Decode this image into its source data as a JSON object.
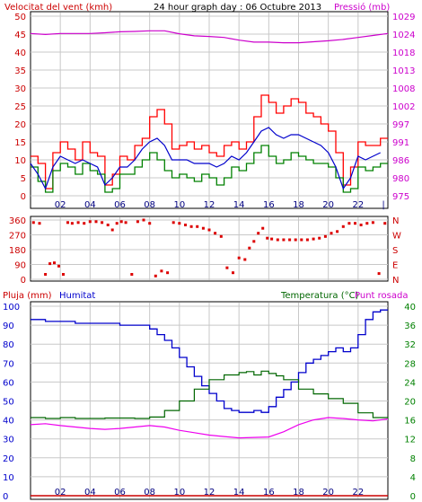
{
  "header": {
    "wind_label": "Velocitat del vent (kmh)",
    "date_label": "24 hour graph day : 06 Octubre 2013",
    "pressure_label": "Pressió (mb)"
  },
  "bottom_header": {
    "rain_label": "Pluja (mm)",
    "humidity_label": "Humitat",
    "temperature_label": "Temperatura (°C)",
    "dewpoint_label": "Punt rosada"
  },
  "colors": {
    "wind_avg": "#008000",
    "wind_gust": "#ff0000",
    "wind_dir_avg": "#0000cc",
    "pressure": "#cc00cc",
    "direction": "#dd0000",
    "humidity": "#0000cc",
    "temperature": "#006600",
    "dewpoint": "#ee00ee",
    "rain": "#cc0000",
    "grid": "#c8c8c8",
    "left_axis": "#cc0000",
    "humidity_axis": "#0000cc",
    "right_axis_top": "#cc00cc",
    "right_axis_bottom": "#008000"
  },
  "chart_data": [
    {
      "type": "line",
      "name": "wind_pressure",
      "x_ticks": [
        "02",
        "04",
        "06",
        "08",
        "10",
        "12",
        "14",
        "16",
        "18",
        "20",
        "22"
      ],
      "x_range_hours": [
        0,
        24
      ],
      "y_left_ticks": [
        0,
        5,
        10,
        15,
        20,
        25,
        30,
        35,
        40,
        45,
        50
      ],
      "y_left_range": [
        0,
        50
      ],
      "y_right_ticks": [
        975,
        980,
        986,
        991,
        997,
        1002,
        1008,
        1013,
        1018,
        1024,
        1029
      ],
      "y_right_range": [
        975,
        1029
      ],
      "grid": true,
      "series": [
        {
          "name": "Velocitat del vent (kmh)",
          "role": "gust",
          "x": [
            0,
            0.5,
            1,
            1.5,
            2,
            2.5,
            3,
            3.5,
            4,
            4.5,
            5,
            5.5,
            6,
            6.5,
            7,
            7.5,
            8,
            8.5,
            9,
            9.5,
            10,
            10.5,
            11,
            11.5,
            12,
            12.5,
            13,
            13.5,
            14,
            14.5,
            15,
            15.5,
            16,
            16.5,
            17,
            17.5,
            18,
            18.5,
            19,
            19.5,
            20,
            20.5,
            21,
            21.5,
            22,
            22.5,
            23,
            23.5
          ],
          "y": [
            11,
            9,
            2,
            12,
            15,
            13,
            10,
            15,
            12,
            11,
            3,
            6,
            11,
            10,
            14,
            16,
            22,
            24,
            20,
            13,
            14,
            15,
            13,
            14,
            12,
            11,
            14,
            15,
            13,
            15,
            22,
            28,
            26,
            23,
            25,
            27,
            26,
            23,
            22,
            20,
            18,
            12,
            3,
            8,
            15,
            14,
            14,
            16
          ]
        },
        {
          "name": "Velocitat del vent (kmh)",
          "role": "average",
          "x": [
            0,
            0.5,
            1,
            1.5,
            2,
            2.5,
            3,
            3.5,
            4,
            4.5,
            5,
            5.5,
            6,
            6.5,
            7,
            7.5,
            8,
            8.5,
            9,
            9.5,
            10,
            10.5,
            11,
            11.5,
            12,
            12.5,
            13,
            13.5,
            14,
            14.5,
            15,
            15.5,
            16,
            16.5,
            17,
            17.5,
            18,
            18.5,
            19,
            19.5,
            20,
            20.5,
            21,
            21.5,
            22,
            22.5,
            23,
            23.5
          ],
          "y": [
            8,
            4,
            1,
            7,
            9,
            8,
            6,
            9,
            7,
            6,
            1,
            2,
            6,
            6,
            8,
            10,
            12,
            10,
            7,
            5,
            6,
            5,
            4,
            6,
            5,
            3,
            5,
            8,
            7,
            9,
            12,
            14,
            11,
            9,
            10,
            12,
            11,
            10,
            9,
            9,
            8,
            5,
            1,
            2,
            8,
            7,
            8,
            9
          ]
        },
        {
          "name": "Velocitat del vent (kmh)",
          "role": "smoothed",
          "x": [
            0,
            0.5,
            1,
            1.5,
            2,
            2.5,
            3,
            3.5,
            4,
            4.5,
            5,
            5.5,
            6,
            6.5,
            7,
            7.5,
            8,
            8.5,
            9,
            9.5,
            10,
            10.5,
            11,
            11.5,
            12,
            12.5,
            13,
            13.5,
            14,
            14.5,
            15,
            15.5,
            16,
            16.5,
            17,
            17.5,
            18,
            18.5,
            19,
            19.5,
            20,
            20.5,
            21,
            21.5,
            22,
            22.5,
            23,
            23.5
          ],
          "y": [
            9,
            6,
            2,
            8,
            11,
            10,
            9,
            10,
            9,
            8,
            3,
            5,
            8,
            8,
            10,
            13,
            15,
            16,
            14,
            10,
            10,
            10,
            9,
            9,
            9,
            8,
            9,
            11,
            10,
            12,
            15,
            18,
            19,
            17,
            16,
            17,
            17,
            16,
            15,
            14,
            12,
            8,
            2,
            5,
            11,
            10,
            11,
            12
          ]
        },
        {
          "name": "Pressió (mb)",
          "x": [
            0,
            1,
            2,
            3,
            4,
            5,
            6,
            7,
            8,
            9,
            10,
            11,
            12,
            13,
            14,
            15,
            16,
            17,
            18,
            19,
            20,
            21,
            22,
            23,
            24
          ],
          "y": [
            1023.8,
            1023.5,
            1023.8,
            1023.8,
            1023.8,
            1024.0,
            1024.3,
            1024.4,
            1024.6,
            1024.6,
            1023.7,
            1023.1,
            1022.9,
            1022.6,
            1021.8,
            1021.2,
            1021.2,
            1021.0,
            1021.0,
            1021.3,
            1021.6,
            1022.0,
            1022.6,
            1023.2,
            1023.8
          ]
        }
      ]
    },
    {
      "type": "scatter",
      "name": "wind_direction",
      "y_ticks": [
        0,
        90,
        180,
        270,
        360
      ],
      "y_range": [
        0,
        360
      ],
      "y_right_ticks": [
        "N",
        "W",
        "S",
        "E",
        "N"
      ],
      "grid": true,
      "series": [
        {
          "name": "direction",
          "x": [
            0.2,
            0.6,
            1.0,
            1.3,
            1.6,
            1.9,
            2.2,
            2.5,
            2.8,
            3.2,
            3.6,
            4.0,
            4.4,
            4.8,
            5.2,
            5.5,
            5.8,
            6.1,
            6.4,
            6.8,
            7.2,
            7.6,
            8.0,
            8.4,
            8.8,
            9.2,
            9.6,
            10.0,
            10.4,
            10.8,
            11.2,
            11.6,
            12.0,
            12.4,
            12.8,
            13.2,
            13.6,
            14.0,
            14.4,
            14.7,
            15.0,
            15.3,
            15.6,
            15.9,
            16.2,
            16.6,
            17.0,
            17.4,
            17.8,
            18.2,
            18.6,
            19.0,
            19.4,
            19.8,
            20.2,
            20.6,
            21.0,
            21.4,
            21.8,
            22.2,
            22.6,
            23.0,
            23.4,
            23.8
          ],
          "y": [
            345,
            340,
            30,
            95,
            100,
            80,
            30,
            345,
            340,
            345,
            340,
            350,
            350,
            345,
            330,
            300,
            340,
            350,
            345,
            30,
            350,
            360,
            340,
            20,
            50,
            40,
            345,
            340,
            330,
            320,
            320,
            310,
            300,
            280,
            260,
            70,
            40,
            130,
            120,
            190,
            230,
            280,
            310,
            250,
            245,
            240,
            240,
            240,
            240,
            240,
            240,
            245,
            250,
            260,
            280,
            290,
            320,
            340,
            340,
            330,
            340,
            345,
            35,
            340
          ]
        }
      ]
    },
    {
      "type": "line",
      "name": "humidity_temperature",
      "x_ticks": [
        "02",
        "04",
        "06",
        "08",
        "10",
        "12",
        "14",
        "16",
        "18",
        "20",
        "22"
      ],
      "x_range_hours": [
        0,
        24
      ],
      "y_left_ticks": [
        0,
        10,
        20,
        30,
        40,
        50,
        60,
        70,
        80,
        90,
        100
      ],
      "y_left_range": [
        0,
        100
      ],
      "y_right_ticks": [
        0,
        4,
        8,
        12,
        16,
        20,
        24,
        28,
        32,
        36,
        40
      ],
      "y_right_range": [
        0,
        40
      ],
      "grid": true,
      "series": [
        {
          "name": "Humitat",
          "x": [
            0,
            1,
            2,
            3,
            4,
            5,
            6,
            7,
            8,
            8.5,
            9,
            9.5,
            10,
            10.5,
            11,
            11.5,
            12,
            12.5,
            13,
            13.5,
            14,
            14.5,
            15,
            15.5,
            16,
            16.5,
            17,
            17.5,
            18,
            18.5,
            19,
            19.5,
            20,
            20.5,
            21,
            21.5,
            22,
            22.5,
            23,
            23.5,
            24
          ],
          "y": [
            93,
            92,
            92,
            91,
            91,
            91,
            90,
            90,
            88,
            85,
            82,
            78,
            73,
            68,
            63,
            58,
            54,
            50,
            46,
            45,
            44,
            44,
            45,
            44,
            47,
            52,
            56,
            60,
            65,
            70,
            72,
            74,
            76,
            78,
            76,
            78,
            85,
            93,
            97,
            98,
            98
          ]
        },
        {
          "name": "Temperatura (°C)",
          "x": [
            0,
            1,
            2,
            3,
            4,
            5,
            6,
            7,
            8,
            9,
            10,
            11,
            12,
            13,
            14,
            14.5,
            15,
            15.5,
            16,
            16.5,
            17,
            18,
            19,
            20,
            21,
            22,
            23,
            24
          ],
          "y": [
            16.5,
            16.3,
            16.5,
            16.3,
            16.3,
            16.4,
            16.4,
            16.3,
            16.6,
            18.0,
            20.0,
            22.5,
            24.5,
            25.5,
            26.0,
            26.2,
            25.5,
            26.3,
            25.8,
            25.3,
            24.5,
            22.5,
            21.5,
            20.5,
            19.5,
            17.5,
            16.5,
            16.2
          ]
        },
        {
          "name": "Punt rosada",
          "x": [
            0,
            1,
            2,
            3,
            4,
            5,
            6,
            7,
            8,
            9,
            10,
            11,
            12,
            13,
            14,
            15,
            16,
            17,
            18,
            19,
            20,
            21,
            22,
            23,
            24
          ],
          "y": [
            15.0,
            15.2,
            14.8,
            14.5,
            14.2,
            14.0,
            14.2,
            14.5,
            14.8,
            14.5,
            13.8,
            13.3,
            12.8,
            12.5,
            12.2,
            12.3,
            12.4,
            13.5,
            15.0,
            16.0,
            16.5,
            16.3,
            16.0,
            15.8,
            16.2
          ]
        },
        {
          "name": "Pluja (mm)",
          "x": [
            0,
            24
          ],
          "y": [
            0,
            0
          ]
        }
      ]
    }
  ]
}
